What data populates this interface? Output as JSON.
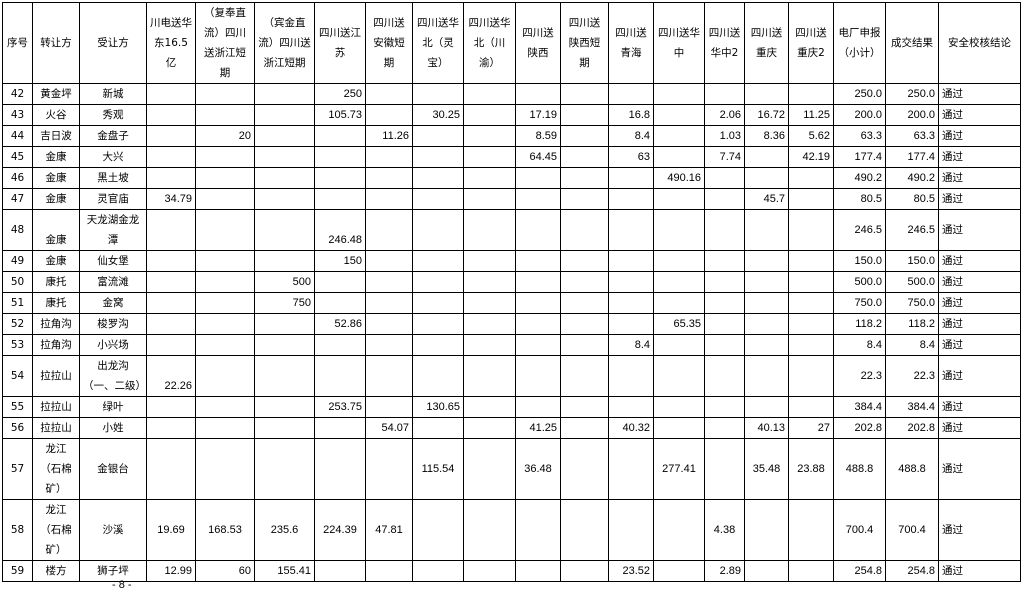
{
  "headers": [
    "序号",
    "转让方",
    "受让方",
    "川电送华东16.5亿",
    "（复奉直流）四川送浙江短期",
    "（宾金直流）四川送浙江短期",
    "四川送江苏",
    "四川送安徽短期",
    "四川送华北（灵宝）",
    "四川送华北（川渝）",
    "四川送陕西",
    "四川送陕西短期",
    "四川送青海",
    "四川送华中",
    "四川送华中2",
    "四川送重庆",
    "四川送重庆2",
    "电厂申报（小计）",
    "成交结果",
    "安全校核结论"
  ],
  "rows": [
    [
      "42",
      "黄金坪",
      "新城",
      "",
      "",
      "",
      "250",
      "",
      "",
      "",
      "",
      "",
      "",
      "",
      "",
      "",
      "",
      "250.0",
      "250.0",
      "通过"
    ],
    [
      "43",
      "火谷",
      "秀观",
      "",
      "",
      "",
      "105.73",
      "",
      "30.25",
      "",
      "17.19",
      "",
      "16.8",
      "",
      "2.06",
      "16.72",
      "11.25",
      "200.0",
      "200.0",
      "通过"
    ],
    [
      "44",
      "吉日波",
      "金盘子",
      "",
      "20",
      "",
      "",
      "11.26",
      "",
      "",
      "8.59",
      "",
      "8.4",
      "",
      "1.03",
      "8.36",
      "5.62",
      "63.3",
      "63.3",
      "通过"
    ],
    [
      "45",
      "金康",
      "大兴",
      "",
      "",
      "",
      "",
      "",
      "",
      "",
      "64.45",
      "",
      "63",
      "",
      "7.74",
      "",
      "42.19",
      "177.4",
      "177.4",
      "通过"
    ],
    [
      "46",
      "金康",
      "黑土坡",
      "",
      "",
      "",
      "",
      "",
      "",
      "",
      "",
      "",
      "",
      "490.16",
      "",
      "",
      "",
      "490.2",
      "490.2",
      "通过"
    ],
    [
      "47",
      "金康",
      "灵官庙",
      "34.79",
      "",
      "",
      "",
      "",
      "",
      "",
      "",
      "",
      "",
      "",
      "",
      "45.7",
      "",
      "80.5",
      "80.5",
      "通过"
    ],
    [
      "48",
      "金康",
      "天龙湖金龙潭",
      "",
      "",
      "",
      "246.48",
      "",
      "",
      "",
      "",
      "",
      "",
      "",
      "",
      "",
      "",
      "246.5",
      "246.5",
      "通过"
    ],
    [
      "49",
      "金康",
      "仙女堡",
      "",
      "",
      "",
      "150",
      "",
      "",
      "",
      "",
      "",
      "",
      "",
      "",
      "",
      "",
      "150.0",
      "150.0",
      "通过"
    ],
    [
      "50",
      "康托",
      "富流滩",
      "",
      "",
      "500",
      "",
      "",
      "",
      "",
      "",
      "",
      "",
      "",
      "",
      "",
      "",
      "500.0",
      "500.0",
      "通过"
    ],
    [
      "51",
      "康托",
      "金窝",
      "",
      "",
      "750",
      "",
      "",
      "",
      "",
      "",
      "",
      "",
      "",
      "",
      "",
      "",
      "750.0",
      "750.0",
      "通过"
    ],
    [
      "52",
      "拉角沟",
      "梭罗沟",
      "",
      "",
      "",
      "52.86",
      "",
      "",
      "",
      "",
      "",
      "",
      "65.35",
      "",
      "",
      "",
      "118.2",
      "118.2",
      "通过"
    ],
    [
      "53",
      "拉角沟",
      "小兴场",
      "",
      "",
      "",
      "",
      "",
      "",
      "",
      "",
      "",
      "8.4",
      "",
      "",
      "",
      "",
      "8.4",
      "8.4",
      "通过"
    ],
    [
      "54",
      "拉拉山",
      "出龙沟（一、二级）",
      "22.26",
      "",
      "",
      "",
      "",
      "",
      "",
      "",
      "",
      "",
      "",
      "",
      "",
      "",
      "22.3",
      "22.3",
      "通过"
    ],
    [
      "55",
      "拉拉山",
      "绿叶",
      "",
      "",
      "",
      "253.75",
      "",
      "130.65",
      "",
      "",
      "",
      "",
      "",
      "",
      "",
      "",
      "384.4",
      "384.4",
      "通过"
    ],
    [
      "56",
      "拉拉山",
      "小姓",
      "",
      "",
      "",
      "",
      "54.07",
      "",
      "",
      "41.25",
      "",
      "40.32",
      "",
      "",
      "40.13",
      "27",
      "202.8",
      "202.8",
      "通过"
    ],
    [
      "57",
      "龙江（石棉矿）",
      "金银台",
      "",
      "",
      "",
      "",
      "",
      "115.54",
      "",
      "36.48",
      "",
      "",
      "277.41",
      "",
      "35.48",
      "23.88",
      "488.8",
      "488.8",
      "通过"
    ],
    [
      "58",
      "龙江（石棉矿）",
      "沙溪",
      "19.69",
      "168.53",
      "235.6",
      "224.39",
      "47.81",
      "",
      "",
      "",
      "",
      "",
      "",
      "4.38",
      "",
      "",
      "700.4",
      "700.4",
      "通过"
    ],
    [
      "59",
      "楼方",
      "狮子坪",
      "12.99",
      "60",
      "155.41",
      "",
      "",
      "",
      "",
      "",
      "",
      "23.52",
      "",
      "2.89",
      "",
      "",
      "254.8",
      "254.8",
      "通过"
    ]
  ],
  "footer": {
    "page_number": "- 8 -"
  }
}
